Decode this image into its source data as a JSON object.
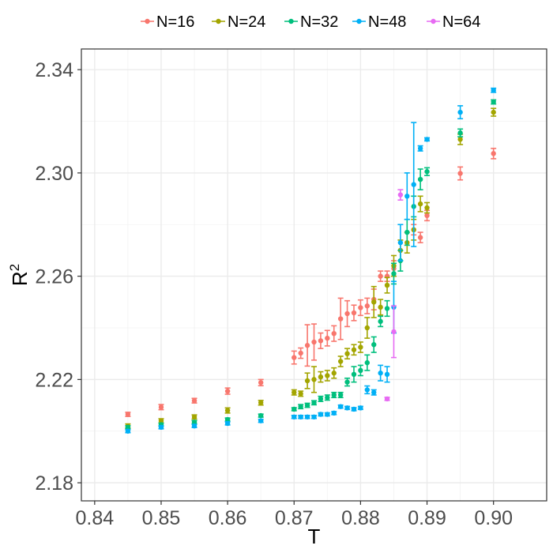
{
  "chart_data": {
    "type": "scatter",
    "title": "",
    "xlabel": "T",
    "ylabel_base": "R",
    "ylabel_sup": "2",
    "xlim": [
      0.838,
      0.908
    ],
    "ylim": [
      2.173,
      2.348
    ],
    "x_ticks": [
      0.84,
      0.85,
      0.86,
      0.87,
      0.88,
      0.89,
      0.9
    ],
    "x_tick_labels": [
      "0.84",
      "0.85",
      "0.86",
      "0.87",
      "0.88",
      "0.89",
      "0.90"
    ],
    "y_ticks": [
      2.18,
      2.22,
      2.26,
      2.3,
      2.34
    ],
    "y_tick_labels": [
      "2.18",
      "2.22",
      "2.26",
      "2.30",
      "2.34"
    ],
    "grid": true,
    "legend_position": "top",
    "series": [
      {
        "name": "N=16",
        "color": "#F8766D",
        "points": [
          {
            "x": 0.845,
            "y": 2.2065,
            "err": 0.0008
          },
          {
            "x": 0.85,
            "y": 2.2093,
            "err": 0.001
          },
          {
            "x": 0.855,
            "y": 2.2118,
            "err": 0.0009
          },
          {
            "x": 0.86,
            "y": 2.2155,
            "err": 0.0012
          },
          {
            "x": 0.865,
            "y": 2.2188,
            "err": 0.0012
          },
          {
            "x": 0.87,
            "y": 2.2285,
            "err": 0.0025
          },
          {
            "x": 0.871,
            "y": 2.2302,
            "err": 0.002
          },
          {
            "x": 0.872,
            "y": 2.2332,
            "err": 0.008
          },
          {
            "x": 0.873,
            "y": 2.2345,
            "err": 0.007
          },
          {
            "x": 0.874,
            "y": 2.235,
            "err": 0.003
          },
          {
            "x": 0.875,
            "y": 2.236,
            "err": 0.003
          },
          {
            "x": 0.876,
            "y": 2.2378,
            "err": 0.003
          },
          {
            "x": 0.877,
            "y": 2.2435,
            "err": 0.008
          },
          {
            "x": 0.878,
            "y": 2.2455,
            "err": 0.005
          },
          {
            "x": 0.879,
            "y": 2.2458,
            "err": 0.003
          },
          {
            "x": 0.88,
            "y": 2.2478,
            "err": 0.003
          },
          {
            "x": 0.881,
            "y": 2.2485,
            "err": 0.003
          },
          {
            "x": 0.882,
            "y": 2.251,
            "err": 0.004
          },
          {
            "x": 0.883,
            "y": 2.26,
            "err": 0.002
          },
          {
            "x": 0.884,
            "y": 2.26,
            "err": 0.002
          },
          {
            "x": 0.885,
            "y": 2.263,
            "err": 0.003
          },
          {
            "x": 0.888,
            "y": 2.278,
            "err": 0.002
          },
          {
            "x": 0.889,
            "y": 2.275,
            "err": 0.002
          },
          {
            "x": 0.89,
            "y": 2.2835,
            "err": 0.002
          },
          {
            "x": 0.895,
            "y": 2.2998,
            "err": 0.0025
          },
          {
            "x": 0.9,
            "y": 2.3075,
            "err": 0.002
          }
        ]
      },
      {
        "name": "N=24",
        "color": "#A3A500",
        "points": [
          {
            "x": 0.845,
            "y": 2.202,
            "err": 0.0008
          },
          {
            "x": 0.85,
            "y": 2.204,
            "err": 0.0008
          },
          {
            "x": 0.855,
            "y": 2.2055,
            "err": 0.0008
          },
          {
            "x": 0.86,
            "y": 2.208,
            "err": 0.001
          },
          {
            "x": 0.865,
            "y": 2.211,
            "err": 0.0009
          },
          {
            "x": 0.87,
            "y": 2.215,
            "err": 0.001
          },
          {
            "x": 0.871,
            "y": 2.2145,
            "err": 0.001
          },
          {
            "x": 0.872,
            "y": 2.2195,
            "err": 0.003
          },
          {
            "x": 0.873,
            "y": 2.22,
            "err": 0.005
          },
          {
            "x": 0.874,
            "y": 2.221,
            "err": 0.002
          },
          {
            "x": 0.875,
            "y": 2.2215,
            "err": 0.002
          },
          {
            "x": 0.876,
            "y": 2.2225,
            "err": 0.002
          },
          {
            "x": 0.877,
            "y": 2.227,
            "err": 0.002
          },
          {
            "x": 0.878,
            "y": 2.23,
            "err": 0.002
          },
          {
            "x": 0.879,
            "y": 2.2315,
            "err": 0.002
          },
          {
            "x": 0.88,
            "y": 2.2325,
            "err": 0.002
          },
          {
            "x": 0.881,
            "y": 2.24,
            "err": 0.004
          },
          {
            "x": 0.882,
            "y": 2.25,
            "err": 0.006
          },
          {
            "x": 0.883,
            "y": 2.248,
            "err": 0.003
          },
          {
            "x": 0.884,
            "y": 2.2565,
            "err": 0.003
          },
          {
            "x": 0.885,
            "y": 2.264,
            "err": 0.004
          },
          {
            "x": 0.886,
            "y": 2.27,
            "err": 0.004
          },
          {
            "x": 0.887,
            "y": 2.273,
            "err": 0.004
          },
          {
            "x": 0.888,
            "y": 2.278,
            "err": 0.004
          },
          {
            "x": 0.889,
            "y": 2.288,
            "err": 0.003
          },
          {
            "x": 0.89,
            "y": 2.2865,
            "err": 0.002
          },
          {
            "x": 0.895,
            "y": 2.313,
            "err": 0.002
          },
          {
            "x": 0.9,
            "y": 2.3235,
            "err": 0.0015
          }
        ]
      },
      {
        "name": "N=32",
        "color": "#00BF7D",
        "points": [
          {
            "x": 0.845,
            "y": 2.2015,
            "err": 0.0006
          },
          {
            "x": 0.85,
            "y": 2.2025,
            "err": 0.0006
          },
          {
            "x": 0.855,
            "y": 2.2035,
            "err": 0.0006
          },
          {
            "x": 0.86,
            "y": 2.2045,
            "err": 0.0006
          },
          {
            "x": 0.865,
            "y": 2.206,
            "err": 0.0006
          },
          {
            "x": 0.87,
            "y": 2.2085,
            "err": 0.0006
          },
          {
            "x": 0.871,
            "y": 2.2095,
            "err": 0.0008
          },
          {
            "x": 0.872,
            "y": 2.21,
            "err": 0.0008
          },
          {
            "x": 0.873,
            "y": 2.211,
            "err": 0.0008
          },
          {
            "x": 0.874,
            "y": 2.2125,
            "err": 0.001
          },
          {
            "x": 0.875,
            "y": 2.213,
            "err": 0.001
          },
          {
            "x": 0.876,
            "y": 2.214,
            "err": 0.001
          },
          {
            "x": 0.877,
            "y": 2.214,
            "err": 0.001
          },
          {
            "x": 0.878,
            "y": 2.219,
            "err": 0.0015
          },
          {
            "x": 0.879,
            "y": 2.222,
            "err": 0.003
          },
          {
            "x": 0.88,
            "y": 2.2235,
            "err": 0.002
          },
          {
            "x": 0.881,
            "y": 2.2265,
            "err": 0.003
          },
          {
            "x": 0.882,
            "y": 2.2335,
            "err": 0.003
          },
          {
            "x": 0.883,
            "y": 2.2425,
            "err": 0.002
          },
          {
            "x": 0.884,
            "y": 2.2475,
            "err": 0.003
          },
          {
            "x": 0.885,
            "y": 2.261,
            "err": 0.004
          },
          {
            "x": 0.886,
            "y": 2.266,
            "err": 0.004
          },
          {
            "x": 0.887,
            "y": 2.277,
            "err": 0.005
          },
          {
            "x": 0.888,
            "y": 2.287,
            "err": 0.004
          },
          {
            "x": 0.889,
            "y": 2.2975,
            "err": 0.004
          },
          {
            "x": 0.89,
            "y": 2.3005,
            "err": 0.0015
          },
          {
            "x": 0.895,
            "y": 2.3155,
            "err": 0.0015
          },
          {
            "x": 0.9,
            "y": 2.3275,
            "err": 0.0008
          }
        ]
      },
      {
        "name": "N=48",
        "color": "#00B0F6",
        "points": [
          {
            "x": 0.845,
            "y": 2.2,
            "err": 0.0006
          },
          {
            "x": 0.85,
            "y": 2.2015,
            "err": 0.0006
          },
          {
            "x": 0.855,
            "y": 2.202,
            "err": 0.0006
          },
          {
            "x": 0.86,
            "y": 2.203,
            "err": 0.0006
          },
          {
            "x": 0.865,
            "y": 2.204,
            "err": 0.0006
          },
          {
            "x": 0.87,
            "y": 2.2055,
            "err": 0.0006
          },
          {
            "x": 0.871,
            "y": 2.2055,
            "err": 0.0006
          },
          {
            "x": 0.872,
            "y": 2.2055,
            "err": 0.0006
          },
          {
            "x": 0.873,
            "y": 2.2055,
            "err": 0.0006
          },
          {
            "x": 0.874,
            "y": 2.2065,
            "err": 0.0006
          },
          {
            "x": 0.875,
            "y": 2.2065,
            "err": 0.0006
          },
          {
            "x": 0.876,
            "y": 2.207,
            "err": 0.0006
          },
          {
            "x": 0.877,
            "y": 2.2095,
            "err": 0.0006
          },
          {
            "x": 0.878,
            "y": 2.209,
            "err": 0.0006
          },
          {
            "x": 0.879,
            "y": 2.2085,
            "err": 0.0006
          },
          {
            "x": 0.88,
            "y": 2.209,
            "err": 0.0006
          },
          {
            "x": 0.881,
            "y": 2.216,
            "err": 0.0015
          },
          {
            "x": 0.882,
            "y": 2.215,
            "err": 0.001
          },
          {
            "x": 0.883,
            "y": 2.2225,
            "err": 0.003
          },
          {
            "x": 0.884,
            "y": 2.222,
            "err": 0.003
          },
          {
            "x": 0.885,
            "y": 2.248,
            "err": 0.01
          },
          {
            "x": 0.886,
            "y": 2.273,
            "err": 0.007
          },
          {
            "x": 0.887,
            "y": 2.291,
            "err": 0.009
          },
          {
            "x": 0.888,
            "y": 2.2955,
            "err": 0.024
          },
          {
            "x": 0.889,
            "y": 2.3095,
            "err": 0.001
          },
          {
            "x": 0.89,
            "y": 2.313,
            "err": 0.0006
          },
          {
            "x": 0.895,
            "y": 2.3235,
            "err": 0.0025
          },
          {
            "x": 0.9,
            "y": 2.332,
            "err": 0.0008
          }
        ]
      },
      {
        "name": "N=64",
        "color": "#E76BF3",
        "points": [
          {
            "x": 0.884,
            "y": 2.2125,
            "err": 0.0006
          },
          {
            "x": 0.885,
            "y": 2.2385,
            "err": 0.01
          },
          {
            "x": 0.886,
            "y": 2.2915,
            "err": 0.002
          }
        ]
      }
    ]
  }
}
